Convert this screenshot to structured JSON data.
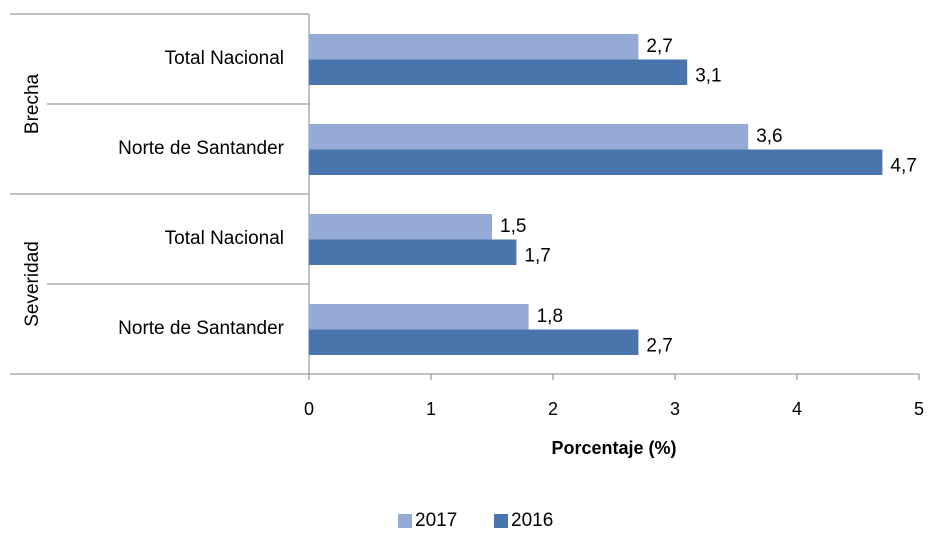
{
  "chart_data": {
    "type": "bar",
    "orientation": "horizontal",
    "groups": [
      "Brecha",
      "Severidad"
    ],
    "categories": [
      "Total Nacional",
      "Norte de Santander",
      "Total Nacional",
      "Norte de Santander"
    ],
    "series": [
      {
        "name": "2017",
        "color": "#95abd6",
        "values": [
          2.7,
          3.6,
          1.5,
          1.8
        ],
        "value_labels": [
          "2,7",
          "3,6",
          "1,5",
          "1,8"
        ]
      },
      {
        "name": "2016",
        "color": "#4975ad",
        "values": [
          3.1,
          4.7,
          1.7,
          2.7
        ],
        "value_labels": [
          "3,1",
          "4,7",
          "1,7",
          "2,7"
        ]
      }
    ],
    "xlabel": "Porcentaje (%)",
    "xlim": [
      0,
      5
    ],
    "xticks": [
      0,
      1,
      2,
      3,
      4,
      5
    ],
    "legend": "bottom"
  }
}
